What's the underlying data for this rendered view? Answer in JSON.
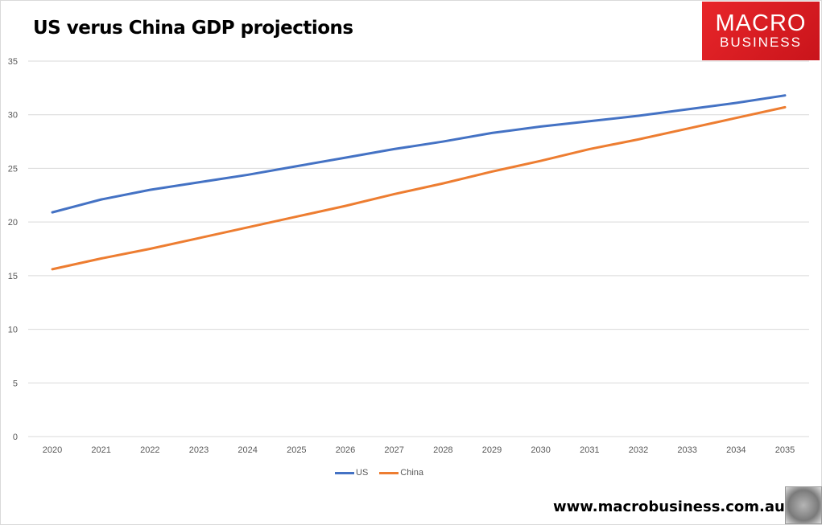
{
  "title": "US verus China GDP projections",
  "logo": {
    "line1": "MACRO",
    "line2": "BUSINESS"
  },
  "website": "www.macrobusiness.com.au",
  "chart_data": {
    "type": "line",
    "title": "US verus China GDP projections",
    "xlabel": "",
    "ylabel": "",
    "ylim": [
      0,
      35
    ],
    "yticks": [
      "0",
      "5",
      "10",
      "15",
      "20",
      "25",
      "30",
      "35"
    ],
    "x": [
      "2020",
      "2021",
      "2022",
      "2023",
      "2024",
      "2025",
      "2026",
      "2027",
      "2028",
      "2029",
      "2030",
      "2031",
      "2032",
      "2033",
      "2034",
      "2035"
    ],
    "grid": true,
    "legend": "bottom-center",
    "series": [
      {
        "name": "US",
        "color": "#4472c4",
        "values": [
          20.9,
          22.1,
          23.0,
          23.7,
          24.4,
          25.2,
          26.0,
          26.8,
          27.5,
          28.3,
          28.9,
          29.4,
          29.9,
          30.5,
          31.1,
          31.8
        ]
      },
      {
        "name": "China",
        "color": "#ed7d31",
        "values": [
          15.6,
          16.6,
          17.5,
          18.5,
          19.5,
          20.5,
          21.5,
          22.6,
          23.6,
          24.7,
          25.7,
          26.8,
          27.7,
          28.7,
          29.7,
          30.7
        ]
      }
    ]
  }
}
